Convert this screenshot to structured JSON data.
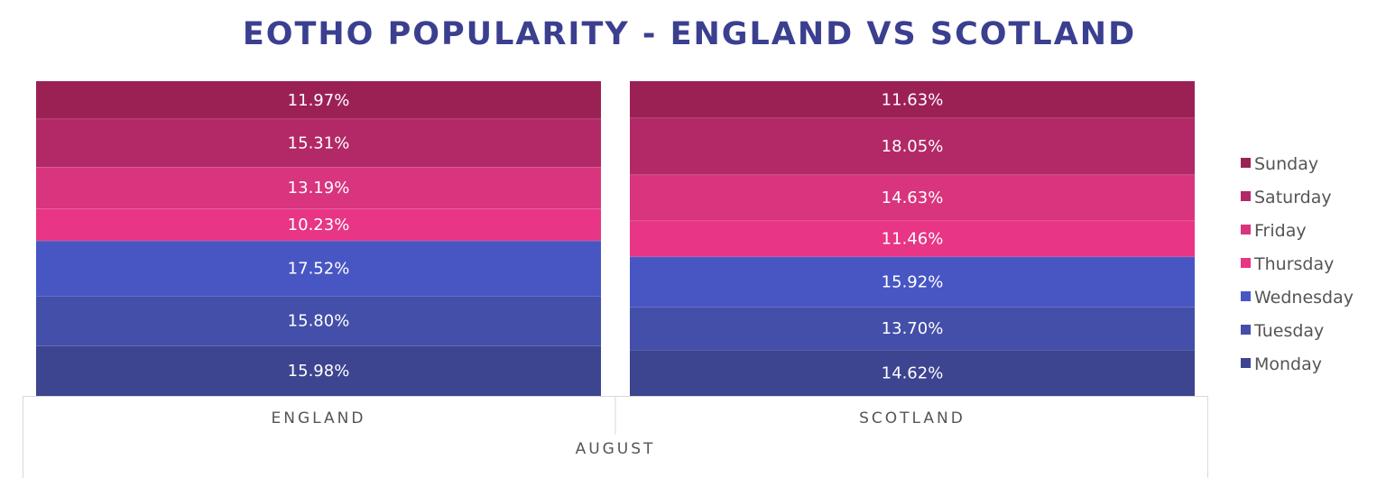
{
  "chart_data": {
    "type": "bar",
    "stacked": true,
    "normalized_percent": true,
    "title": "EOTHO POPULARITY - ENGLAND VS SCOTLAND",
    "categories": [
      "ENGLAND",
      "SCOTLAND"
    ],
    "group_label": "AUGUST",
    "series": [
      {
        "name": "Monday",
        "values": [
          15.98,
          14.62
        ],
        "labels": [
          "15.98%",
          "14.62%"
        ],
        "color": "#3d4490"
      },
      {
        "name": "Tuesday",
        "values": [
          15.8,
          13.7
        ],
        "labels": [
          "15.80%",
          "13.70%"
        ],
        "color": "#434fa8"
      },
      {
        "name": "Wednesday",
        "values": [
          17.52,
          15.92
        ],
        "labels": [
          "17.52%",
          "15.92%"
        ],
        "color": "#4856c4"
      },
      {
        "name": "Thursday",
        "values": [
          10.23,
          11.46
        ],
        "labels": [
          "10.23%",
          "11.46%"
        ],
        "color": "#e83585"
      },
      {
        "name": "Friday",
        "values": [
          13.19,
          14.63
        ],
        "labels": [
          "13.19%",
          "14.63%"
        ],
        "color": "#d9347e"
      },
      {
        "name": "Saturday",
        "values": [
          15.31,
          18.05
        ],
        "labels": [
          "15.31%",
          "18.05%"
        ],
        "color": "#b32866"
      },
      {
        "name": "Sunday",
        "values": [
          11.97,
          11.63
        ],
        "labels": [
          "11.97%",
          "11.63%"
        ],
        "color": "#9b2155"
      }
    ],
    "legend_position": "right",
    "legend_order": [
      "Sunday",
      "Saturday",
      "Friday",
      "Thursday",
      "Wednesday",
      "Tuesday",
      "Monday"
    ],
    "ylim": [
      0,
      100
    ],
    "grid": false
  }
}
